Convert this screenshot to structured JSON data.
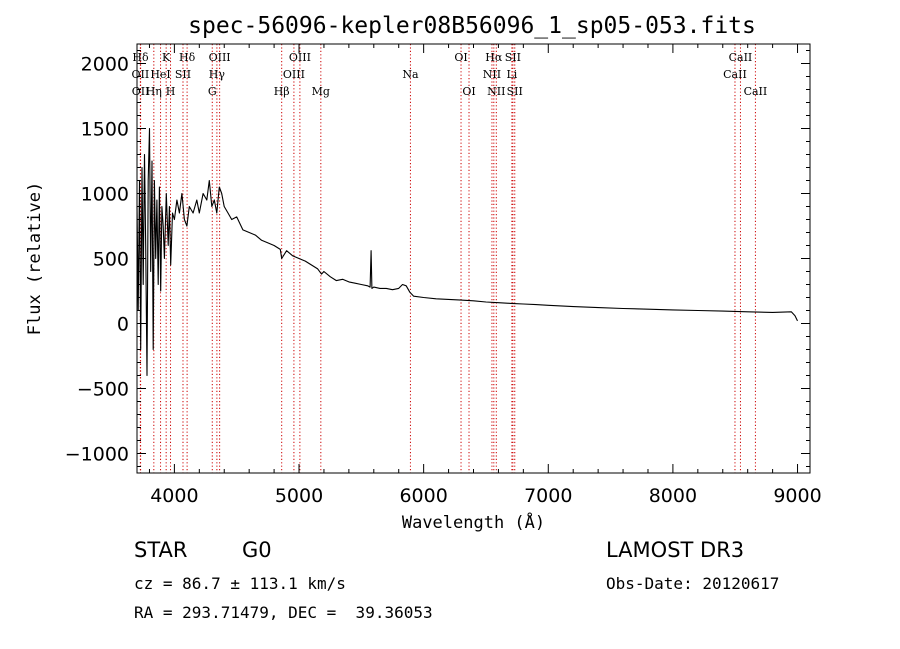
{
  "chart_data": {
    "type": "line",
    "title": "spec-56096-kepler08B56096_1_sp05-053.fits",
    "xlabel": "Wavelength (Å)",
    "ylabel": "Flux (relative)",
    "xlim": [
      3700,
      9100
    ],
    "ylim": [
      -1150,
      2150
    ],
    "xticks": [
      4000,
      5000,
      6000,
      7000,
      8000,
      9000
    ],
    "yticks": [
      -1000,
      -500,
      0,
      500,
      1000,
      1500,
      2000
    ],
    "series": [
      {
        "name": "flux",
        "points": [
          [
            3700,
            900
          ],
          [
            3710,
            100
          ],
          [
            3720,
            1100
          ],
          [
            3730,
            -200
          ],
          [
            3740,
            1200
          ],
          [
            3750,
            300
          ],
          [
            3760,
            1300
          ],
          [
            3770,
            600
          ],
          [
            3780,
            -400
          ],
          [
            3790,
            1100
          ],
          [
            3800,
            1500
          ],
          [
            3810,
            400
          ],
          [
            3820,
            1250
          ],
          [
            3830,
            -200
          ],
          [
            3840,
            1100
          ],
          [
            3850,
            500
          ],
          [
            3860,
            950
          ],
          [
            3870,
            300
          ],
          [
            3880,
            1050
          ],
          [
            3890,
            250
          ],
          [
            3900,
            900
          ],
          [
            3910,
            750
          ],
          [
            3920,
            500
          ],
          [
            3935,
            1000
          ],
          [
            3950,
            600
          ],
          [
            3960,
            900
          ],
          [
            3970,
            450
          ],
          [
            3985,
            850
          ],
          [
            4000,
            800
          ],
          [
            4020,
            950
          ],
          [
            4040,
            850
          ],
          [
            4060,
            1000
          ],
          [
            4080,
            800
          ],
          [
            4100,
            750
          ],
          [
            4120,
            900
          ],
          [
            4150,
            850
          ],
          [
            4180,
            950
          ],
          [
            4200,
            850
          ],
          [
            4230,
            1000
          ],
          [
            4260,
            950
          ],
          [
            4280,
            1100
          ],
          [
            4300,
            900
          ],
          [
            4320,
            950
          ],
          [
            4340,
            850
          ],
          [
            4360,
            1050
          ],
          [
            4380,
            1000
          ],
          [
            4400,
            900
          ],
          [
            4430,
            850
          ],
          [
            4460,
            800
          ],
          [
            4500,
            820
          ],
          [
            4550,
            720
          ],
          [
            4600,
            700
          ],
          [
            4650,
            680
          ],
          [
            4700,
            640
          ],
          [
            4750,
            620
          ],
          [
            4800,
            600
          ],
          [
            4850,
            570
          ],
          [
            4861,
            500
          ],
          [
            4900,
            560
          ],
          [
            4950,
            520
          ],
          [
            5000,
            500
          ],
          [
            5050,
            480
          ],
          [
            5100,
            450
          ],
          [
            5150,
            420
          ],
          [
            5180,
            380
          ],
          [
            5200,
            400
          ],
          [
            5250,
            360
          ],
          [
            5300,
            330
          ],
          [
            5350,
            340
          ],
          [
            5400,
            320
          ],
          [
            5450,
            310
          ],
          [
            5500,
            300
          ],
          [
            5550,
            290
          ],
          [
            5570,
            280
          ],
          [
            5578,
            560
          ],
          [
            5585,
            270
          ],
          [
            5600,
            280
          ],
          [
            5650,
            270
          ],
          [
            5700,
            270
          ],
          [
            5750,
            260
          ],
          [
            5800,
            270
          ],
          [
            5830,
            300
          ],
          [
            5860,
            290
          ],
          [
            5890,
            240
          ],
          [
            5920,
            210
          ],
          [
            6000,
            200
          ],
          [
            6100,
            190
          ],
          [
            6200,
            185
          ],
          [
            6300,
            180
          ],
          [
            6400,
            175
          ],
          [
            6500,
            165
          ],
          [
            6600,
            160
          ],
          [
            6700,
            155
          ],
          [
            6800,
            150
          ],
          [
            6900,
            145
          ],
          [
            7000,
            140
          ],
          [
            7200,
            130
          ],
          [
            7400,
            122
          ],
          [
            7600,
            115
          ],
          [
            7800,
            110
          ],
          [
            8000,
            105
          ],
          [
            8200,
            100
          ],
          [
            8400,
            95
          ],
          [
            8600,
            90
          ],
          [
            8800,
            85
          ],
          [
            8950,
            90
          ],
          [
            8980,
            60
          ],
          [
            9000,
            20
          ]
        ]
      }
    ],
    "lines": [
      {
        "label": "Hδ",
        "x": 3728,
        "row": 0
      },
      {
        "label": "OII",
        "x": 3727,
        "row": 1
      },
      {
        "label": "OII",
        "x": 3729,
        "row": 2
      },
      {
        "label": "Hη",
        "x": 3835,
        "row": 2
      },
      {
        "label": "HeI",
        "x": 3889,
        "row": 1
      },
      {
        "label": "K",
        "x": 3934,
        "row": 0
      },
      {
        "label": "H",
        "x": 3969,
        "row": 2
      },
      {
        "label": "SII",
        "x": 4069,
        "row": 1
      },
      {
        "label": "Hδ",
        "x": 4102,
        "row": 0
      },
      {
        "label": "OIII",
        "x": 4363,
        "row": 0
      },
      {
        "label": "Hγ",
        "x": 4341,
        "row": 1
      },
      {
        "label": "G",
        "x": 4304,
        "row": 2
      },
      {
        "label": "Hβ",
        "x": 4861,
        "row": 2
      },
      {
        "label": "OIII",
        "x": 4959,
        "row": 1
      },
      {
        "label": "OIII",
        "x": 5007,
        "row": 0
      },
      {
        "label": "Mg",
        "x": 5175,
        "row": 2
      },
      {
        "label": "Na",
        "x": 5894,
        "row": 1
      },
      {
        "label": "OI",
        "x": 6300,
        "row": 0
      },
      {
        "label": "OI",
        "x": 6364,
        "row": 2
      },
      {
        "label": "Hα",
        "x": 6563,
        "row": 0
      },
      {
        "label": "NII",
        "x": 6548,
        "row": 1
      },
      {
        "label": "NII",
        "x": 6583,
        "row": 2
      },
      {
        "label": "SII",
        "x": 6716,
        "row": 0
      },
      {
        "label": "Li",
        "x": 6708,
        "row": 1
      },
      {
        "label": "SII",
        "x": 6731,
        "row": 2
      },
      {
        "label": "CaII",
        "x": 8542,
        "row": 0
      },
      {
        "label": "CaII",
        "x": 8498,
        "row": 1
      },
      {
        "label": "CaII",
        "x": 8662,
        "row": 2
      }
    ]
  },
  "info": {
    "object_class": "STAR",
    "subclass": "G0",
    "survey": "LAMOST DR3",
    "cz": "cz = 86.7 ± 113.1 km/s",
    "obs_date": "Obs-Date: 20120617",
    "coords": "RA = 293.71479, DEC =  39.36053"
  },
  "colors": {
    "line_marker": "#cc0000",
    "axis": "#000000",
    "background": "#ffffff"
  }
}
